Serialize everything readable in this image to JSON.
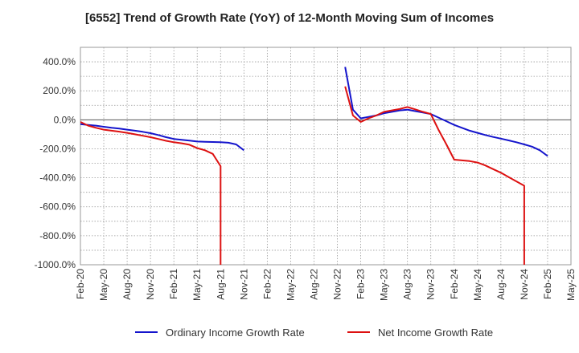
{
  "chart_data": {
    "type": "line",
    "title": "[6552]  Trend of Growth Rate (YoY) of 12-Month Moving Sum of Incomes",
    "xlabel": "",
    "ylabel": "",
    "ylim": [
      -1000,
      500
    ],
    "yticks": [
      400,
      200,
      0,
      -200,
      -400,
      -600,
      -800,
      -1000
    ],
    "ytick_labels": [
      "400.0%",
      "200.0%",
      "0.0%",
      "-200.0%",
      "-400.0%",
      "-600.0%",
      "-800.0%",
      "-1000.0%"
    ],
    "xtick_labels": [
      "Feb-20",
      "May-20",
      "Aug-20",
      "Nov-20",
      "Feb-21",
      "May-21",
      "Aug-21",
      "Nov-21",
      "Feb-22",
      "May-22",
      "Aug-22",
      "Nov-22",
      "Feb-23",
      "May-23",
      "Aug-23",
      "Nov-23",
      "Feb-24",
      "May-24",
      "Aug-24",
      "Nov-24",
      "Feb-25",
      "May-25"
    ],
    "grid": true,
    "legend_position": "bottom",
    "series": [
      {
        "name": "Ordinary Income Growth Rate",
        "color": "#1414cc",
        "segments": [
          [
            [
              "2020-02",
              -30
            ],
            [
              "2020-03",
              -35
            ],
            [
              "2020-04",
              -40
            ],
            [
              "2020-05",
              -48
            ],
            [
              "2020-06",
              -55
            ],
            [
              "2020-07",
              -60
            ],
            [
              "2020-08",
              -68
            ],
            [
              "2020-09",
              -75
            ],
            [
              "2020-10",
              -83
            ],
            [
              "2020-11",
              -92
            ],
            [
              "2020-12",
              -105
            ],
            [
              "2021-01",
              -120
            ],
            [
              "2021-02",
              -132
            ],
            [
              "2021-03",
              -138
            ],
            [
              "2021-04",
              -143
            ],
            [
              "2021-05",
              -150
            ],
            [
              "2021-06",
              -152
            ],
            [
              "2021-07",
              -153
            ],
            [
              "2021-08",
              -155
            ],
            [
              "2021-09",
              -158
            ],
            [
              "2021-10",
              -170
            ],
            [
              "2021-11",
              -210
            ]
          ],
          [
            [
              "2022-12",
              365
            ],
            [
              "2023-01",
              70
            ],
            [
              "2023-02",
              10
            ],
            [
              "2023-03",
              20
            ],
            [
              "2023-04",
              30
            ],
            [
              "2023-05",
              45
            ],
            [
              "2023-06",
              55
            ],
            [
              "2023-07",
              65
            ],
            [
              "2023-08",
              70
            ],
            [
              "2023-09",
              60
            ],
            [
              "2023-10",
              50
            ],
            [
              "2023-11",
              40
            ],
            [
              "2023-12",
              15
            ],
            [
              "2024-01",
              -10
            ],
            [
              "2024-02",
              -35
            ],
            [
              "2024-03",
              -55
            ],
            [
              "2024-04",
              -75
            ],
            [
              "2024-05",
              -90
            ],
            [
              "2024-06",
              -105
            ],
            [
              "2024-07",
              -118
            ],
            [
              "2024-08",
              -130
            ],
            [
              "2024-09",
              -142
            ],
            [
              "2024-10",
              -155
            ],
            [
              "2024-11",
              -170
            ],
            [
              "2024-12",
              -185
            ],
            [
              "2025-01",
              -210
            ],
            [
              "2025-02",
              -250
            ]
          ]
        ]
      },
      {
        "name": "Net Income Growth Rate",
        "color": "#dd1111",
        "segments": [
          [
            [
              "2020-02",
              -15
            ],
            [
              "2020-03",
              -40
            ],
            [
              "2020-04",
              -55
            ],
            [
              "2020-05",
              -68
            ],
            [
              "2020-06",
              -75
            ],
            [
              "2020-07",
              -82
            ],
            [
              "2020-08",
              -90
            ],
            [
              "2020-09",
              -100
            ],
            [
              "2020-10",
              -110
            ],
            [
              "2020-11",
              -120
            ],
            [
              "2020-12",
              -132
            ],
            [
              "2021-01",
              -145
            ],
            [
              "2021-02",
              -155
            ],
            [
              "2021-03",
              -162
            ],
            [
              "2021-04",
              -172
            ],
            [
              "2021-05",
              -195
            ],
            [
              "2021-06",
              -210
            ],
            [
              "2021-07",
              -235
            ],
            [
              "2021-08",
              -320
            ],
            [
              "2021-08",
              -1000
            ]
          ],
          [
            [
              "2022-12",
              230
            ],
            [
              "2023-01",
              30
            ],
            [
              "2023-02",
              -15
            ],
            [
              "2023-03",
              10
            ],
            [
              "2023-04",
              30
            ],
            [
              "2023-05",
              55
            ],
            [
              "2023-06",
              65
            ],
            [
              "2023-07",
              75
            ],
            [
              "2023-08",
              88
            ],
            [
              "2023-09",
              72
            ],
            [
              "2023-10",
              55
            ],
            [
              "2023-11",
              40
            ],
            [
              "2023-12",
              -70
            ],
            [
              "2024-01",
              -170
            ],
            [
              "2024-02",
              -275
            ],
            [
              "2024-03",
              -280
            ],
            [
              "2024-04",
              -285
            ],
            [
              "2024-05",
              -295
            ],
            [
              "2024-06",
              -315
            ],
            [
              "2024-07",
              -340
            ],
            [
              "2024-08",
              -365
            ],
            [
              "2024-09",
              -395
            ],
            [
              "2024-10",
              -425
            ],
            [
              "2024-11",
              -455
            ],
            [
              "2024-11",
              -1000
            ]
          ]
        ]
      }
    ]
  }
}
